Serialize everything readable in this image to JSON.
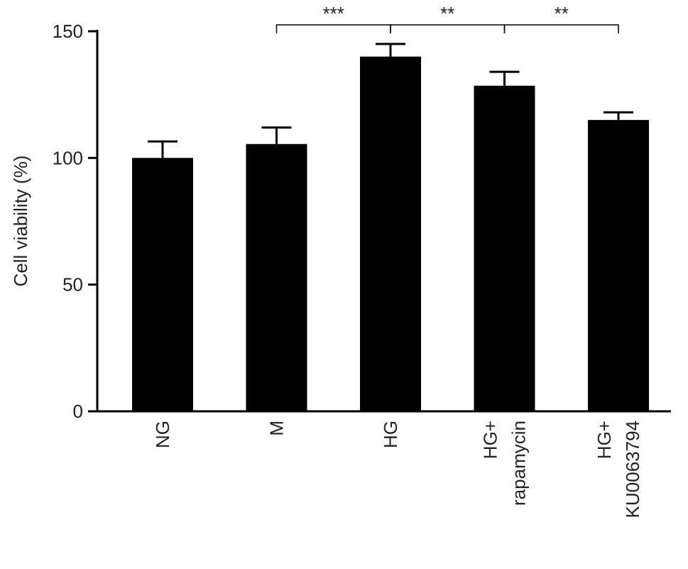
{
  "chart_data": {
    "type": "bar",
    "y_label": "Cell viability (%)",
    "categories": [
      [
        "NG"
      ],
      [
        "M"
      ],
      [
        "HG"
      ],
      [
        "HG+",
        "rapamycin"
      ],
      [
        "HG+",
        "KU0063794"
      ]
    ],
    "values": [
      100,
      105.5,
      140,
      128.5,
      115
    ],
    "errors": [
      6.5,
      6.5,
      5,
      5.5,
      3
    ],
    "color": "#000000",
    "ylim": [
      0,
      150
    ],
    "yticks": [
      0,
      50,
      100,
      150
    ],
    "grid": false,
    "significance": [
      {
        "from": 1,
        "to": 2,
        "label": "***"
      },
      {
        "from": 2,
        "to": 3,
        "label": "**"
      },
      {
        "from": 3,
        "to": 4,
        "label": "**"
      }
    ]
  }
}
